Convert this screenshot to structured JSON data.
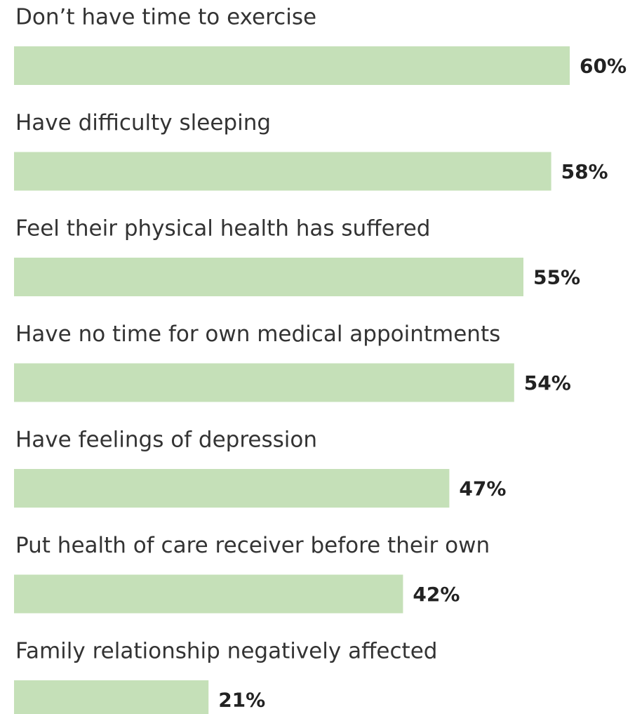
{
  "chart_data": {
    "type": "bar",
    "categories": [
      "Don’t have time to exercise",
      "Have difficulty sleeping",
      "Feel their physical health has suffered",
      "Have no time for own medical appointments",
      "Have feelings of depression",
      "Put health of care receiver before their own",
      "Family relationship negatively affected"
    ],
    "values": [
      60,
      58,
      55,
      54,
      47,
      42,
      21
    ],
    "value_labels": [
      "60%",
      "58%",
      "55%",
      "54%",
      "47%",
      "42%",
      "21%"
    ],
    "color": "#c5e0b8"
  }
}
